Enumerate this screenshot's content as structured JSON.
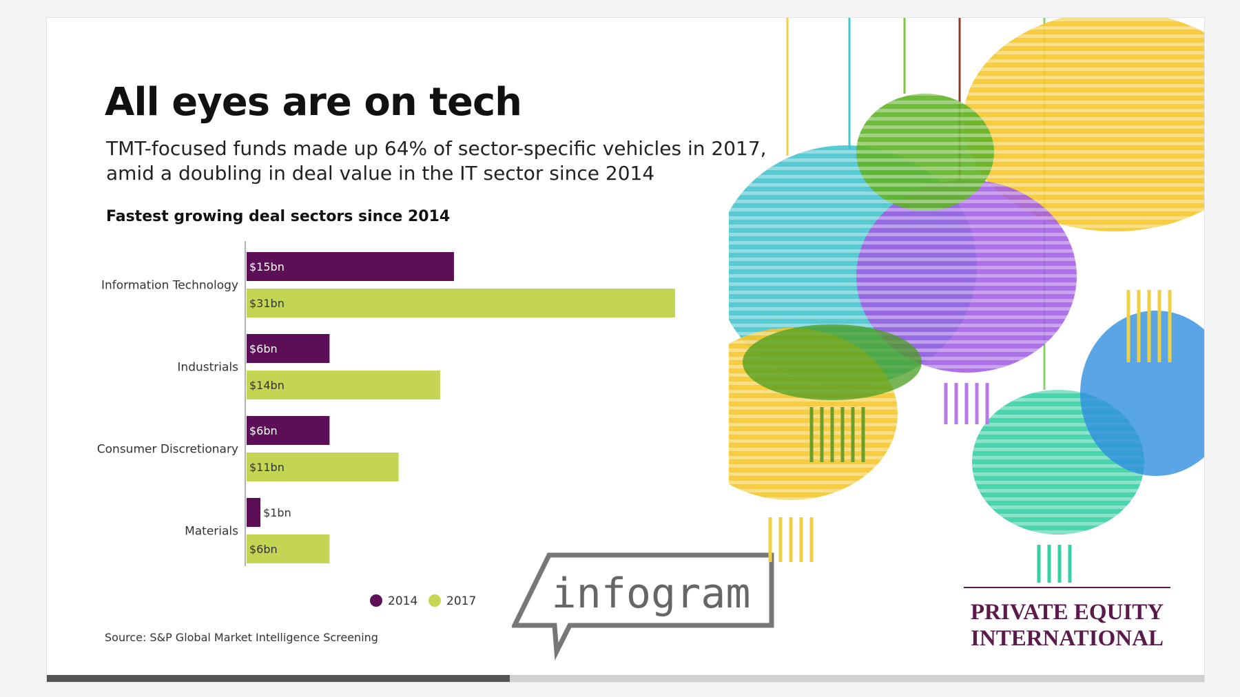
{
  "header": {
    "title": "All eyes are on tech",
    "subtitle": "TMT-focused funds made up 64% of sector-specific vehicles in 2017, amid a doubling in deal value in the IT sector since 2014"
  },
  "chart_data": {
    "type": "bar",
    "orientation": "horizontal",
    "title": "Fastest growing deal sectors since 2014",
    "categories": [
      "Information Technology",
      "Industrials",
      "Consumer Discretionary",
      "Materials"
    ],
    "series": [
      {
        "name": "2014",
        "color": "#5c0f57",
        "values": [
          15,
          6,
          6,
          1
        ],
        "labels": [
          "$15bn",
          "$6bn",
          "$6bn",
          "$1bn"
        ]
      },
      {
        "name": "2017",
        "color": "#c4d553",
        "values": [
          31,
          14,
          11,
          6
        ],
        "labels": [
          "$31bn",
          "$14bn",
          "$11bn",
          "$6bn"
        ]
      }
    ],
    "xlim": [
      0,
      31
    ],
    "grid": false,
    "legend": "bottom"
  },
  "footer": {
    "source": "Source: S&P Global Market Intelligence Screening",
    "badge": "infogram",
    "brand_line1": "PRIVATE EQUITY",
    "brand_line2": "INTERNATIONAL",
    "brand_color": "#5a1a4a"
  },
  "progress": {
    "fraction": 0.4
  }
}
